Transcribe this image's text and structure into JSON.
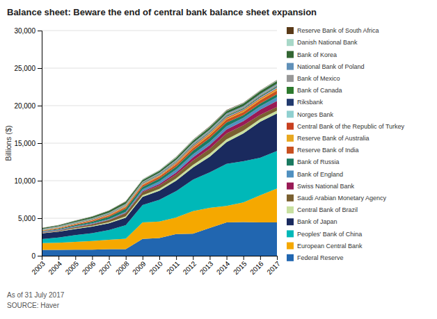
{
  "chart_data": {
    "type": "area",
    "stacked": true,
    "title": "Balance sheet: Beware the end of central bank balance sheet expansion",
    "y_label": "Billions ($)",
    "annotations": [
      "As of 31 July 2017",
      "SOURCE: Haver"
    ],
    "x": [
      2003,
      2004,
      2005,
      2006,
      2007,
      2008,
      2009,
      2010,
      2011,
      2012,
      2013,
      2014,
      2015,
      2016,
      2017
    ],
    "xlim": [
      2003,
      2017
    ],
    "xticks": [
      2003,
      2004,
      2005,
      2006,
      2007,
      2008,
      2009,
      2010,
      2011,
      2012,
      2013,
      2014,
      2015,
      2016,
      2017
    ],
    "ylim": [
      0,
      30000
    ],
    "yticks": [
      0,
      {
        "value": 5000,
        "label": "5,000"
      },
      {
        "value": 10000,
        "label": "10,000"
      },
      {
        "value": 15000,
        "label": "15,000"
      },
      {
        "value": 20000,
        "label": "20,000"
      },
      {
        "value": 25000,
        "label": "25,000"
      },
      {
        "value": 30000,
        "label": "30,000"
      }
    ],
    "grid": true,
    "legend": "right",
    "series": [
      {
        "name": "Federal Reserve",
        "color": "#2166b0",
        "values": [
          780,
          780,
          800,
          820,
          870,
          870,
          2250,
          2350,
          2900,
          2950,
          3700,
          4450,
          4500,
          4450,
          4450
        ]
      },
      {
        "name": "European Central Bank",
        "color": "#f5a800",
        "values": [
          900,
          950,
          1050,
          1150,
          1250,
          1400,
          2200,
          2200,
          2200,
          3000,
          2700,
          2200,
          2600,
          3600,
          4500
        ]
      },
      {
        "name": "Peoples' Bank of China",
        "color": "#00b8b8",
        "values": [
          550,
          700,
          900,
          1050,
          1300,
          1800,
          2300,
          2900,
          3500,
          4200,
          4700,
          5600,
          5500,
          5000,
          5000
        ]
      },
      {
        "name": "Bank of Japan",
        "color": "#1a2a5e",
        "values": [
          750,
          780,
          820,
          860,
          920,
          1000,
          1100,
          1200,
          1400,
          1600,
          2100,
          2900,
          3700,
          4800,
          5000
        ]
      },
      {
        "name": "Central Bank of Brazil",
        "color": "#c8e0a0",
        "values": [
          55,
          65,
          85,
          105,
          135,
          185,
          210,
          260,
          310,
          360,
          390,
          370,
          360,
          370,
          380
        ]
      },
      {
        "name": "Saudi Arabian Monetary Agency",
        "color": "#7a6030",
        "values": [
          55,
          85,
          130,
          190,
          260,
          420,
          420,
          440,
          500,
          580,
          680,
          780,
          720,
          560,
          510
        ]
      },
      {
        "name": "Swiss National Bank",
        "color": "#991a55",
        "values": [
          45,
          50,
          55,
          60,
          65,
          75,
          110,
          220,
          270,
          420,
          470,
          520,
          570,
          680,
          780
        ]
      },
      {
        "name": "Bank of England",
        "color": "#5090c0",
        "values": [
          75,
          80,
          85,
          90,
          95,
          100,
          260,
          340,
          400,
          420,
          420,
          420,
          420,
          450,
          510
        ]
      },
      {
        "name": "Bank of Russia",
        "color": "#1a7a60",
        "values": [
          65,
          95,
          160,
          210,
          290,
          430,
          310,
          360,
          400,
          470,
          520,
          510,
          360,
          360,
          390
        ]
      },
      {
        "name": "Reserve Bank of India",
        "color": "#c85020",
        "values": [
          65,
          85,
          105,
          130,
          160,
          210,
          230,
          260,
          290,
          320,
          360,
          390,
          410,
          445,
          495
        ]
      },
      {
        "name": "Reserve Bank of Australia",
        "color": "#e8a820",
        "values": [
          42,
          48,
          53,
          63,
          68,
          73,
          83,
          93,
          105,
          135,
          155,
          155,
          165,
          175,
          185
        ]
      },
      {
        "name": "Central Bank of the Republic of Turkey",
        "color": "#c84020",
        "values": [
          32,
          37,
          43,
          58,
          73,
          83,
          73,
          83,
          105,
          125,
          135,
          135,
          105,
          115,
          125
        ]
      },
      {
        "name": "Norges Bank",
        "color": "#90d0d0",
        "values": [
          32,
          37,
          43,
          48,
          58,
          63,
          63,
          68,
          73,
          78,
          83,
          88,
          88,
          93,
          105
        ]
      },
      {
        "name": "Riksbank",
        "color": "#223a6e",
        "values": [
          22,
          24,
          27,
          30,
          32,
          34,
          43,
          48,
          53,
          58,
          63,
          68,
          73,
          78,
          83
        ]
      },
      {
        "name": "Bank of Canada",
        "color": "#2d7a2d",
        "values": [
          32,
          34,
          37,
          40,
          43,
          47,
          63,
          68,
          73,
          78,
          83,
          88,
          93,
          98,
          103
        ]
      },
      {
        "name": "Bank of Mexico",
        "color": "#989898",
        "values": [
          43,
          51,
          61,
          71,
          83,
          98,
          93,
          103,
          123,
          143,
          163,
          183,
          183,
          188,
          193
        ]
      },
      {
        "name": "National Bank of Poland",
        "color": "#6090b8",
        "values": [
          22,
          24,
          28,
          32,
          37,
          43,
          53,
          63,
          73,
          83,
          88,
          93,
          93,
          93,
          98
        ]
      },
      {
        "name": "Bank of Korea",
        "color": "#336633",
        "values": [
          105,
          135,
          165,
          205,
          245,
          265,
          235,
          255,
          285,
          305,
          315,
          335,
          345,
          365,
          385
        ]
      },
      {
        "name": "Danish National Bank",
        "color": "#a8d8c8",
        "values": [
          22,
          24,
          27,
          30,
          32,
          37,
          63,
          73,
          83,
          93,
          83,
          78,
          73,
          78,
          83
        ]
      },
      {
        "name": "Reserve Bank of South Africa",
        "color": "#5a3a18",
        "values": [
          12,
          14,
          17,
          20,
          24,
          30,
          32,
          37,
          43,
          47,
          50,
          53,
          47,
          47,
          50
        ]
      }
    ]
  }
}
